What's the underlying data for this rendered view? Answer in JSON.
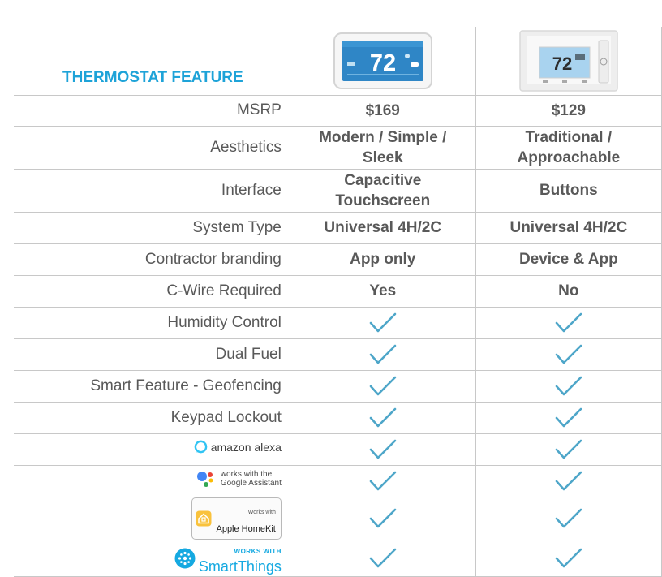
{
  "header": {
    "feature_title": "THERMOSTAT FEATURE",
    "product_a_display": "72",
    "product_b_display": "72"
  },
  "rows": [
    {
      "feature": "MSRP",
      "a": "$169",
      "b": "$129"
    },
    {
      "feature": "Aesthetics",
      "a_lines": [
        "Modern / Simple /",
        "Sleek"
      ],
      "b_lines": [
        "Traditional /",
        "Approachable"
      ]
    },
    {
      "feature": "Interface",
      "a_lines": [
        "Capacitive",
        "Touchscreen"
      ],
      "b": "Buttons"
    },
    {
      "feature": "System Type",
      "a": "Universal 4H/2C",
      "b": "Universal 4H/2C"
    },
    {
      "feature": "Contractor branding",
      "a": "App only",
      "b": "Device & App"
    },
    {
      "feature": "C-Wire Required",
      "a": "Yes",
      "b": "No"
    },
    {
      "feature": "Humidity Control",
      "a_check": true,
      "b_check": true
    },
    {
      "feature": "Dual Fuel",
      "a_check": true,
      "b_check": true
    },
    {
      "feature": "Smart Feature - Geofencing",
      "a_check": true,
      "b_check": true
    },
    {
      "feature": "Keypad Lockout",
      "a_check": true,
      "b_check": true
    }
  ],
  "integrations": {
    "alexa": {
      "label": "amazon alexa",
      "icon": "alexa-ring-icon"
    },
    "google": {
      "line1": "works with the",
      "line2": "Google Assistant",
      "icon": "google-assistant-dots-icon"
    },
    "homekit": {
      "small": "Works with",
      "big": "Apple HomeKit",
      "icon": "homekit-house-icon"
    },
    "smartthings": {
      "small": "WORKS WITH",
      "big": "SmartThings",
      "icon": "smartthings-hub-icon"
    }
  },
  "colors": {
    "accent": "#1ea3d8",
    "check": "#4ea6c9",
    "text": "#595959",
    "grid": "#c8c8c8"
  }
}
